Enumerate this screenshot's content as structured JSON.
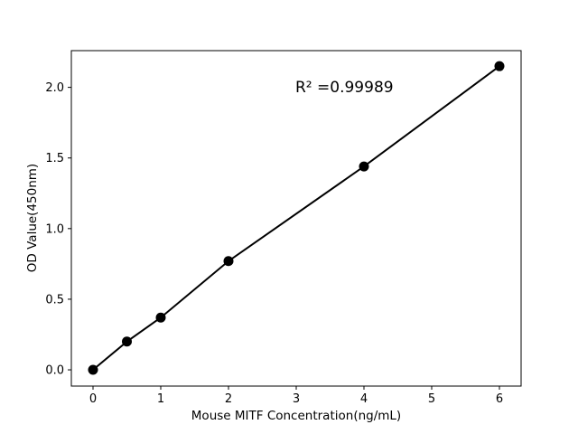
{
  "figure": {
    "background": "#ffffff"
  },
  "chart_data": {
    "type": "line",
    "title": "",
    "xlabel": "Mouse MITF Concentration(ng/mL)",
    "ylabel": "OD Value(450nm)",
    "annotation": "R² =0.99989",
    "x": [
      0,
      0.5,
      1,
      2,
      4,
      6
    ],
    "y": [
      0.0,
      0.2,
      0.37,
      0.77,
      1.44,
      2.15
    ],
    "x_ticks": [
      0,
      1,
      2,
      3,
      4,
      5,
      6
    ],
    "x_tick_labels": [
      "0",
      "1",
      "2",
      "3",
      "4",
      "5",
      "6"
    ],
    "y_ticks": [
      0.0,
      0.5,
      1.0,
      1.5,
      2.0
    ],
    "y_tick_labels": [
      "0.0",
      "0.5",
      "1.0",
      "1.5",
      "2.0"
    ],
    "xlim": [
      -0.32,
      6.32
    ],
    "ylim": [
      -0.115,
      2.26
    ],
    "grid": false,
    "legend": "none",
    "line_color": "#000000",
    "marker_color": "#000000",
    "axis_color": "#000000",
    "text_color": "#000000"
  }
}
